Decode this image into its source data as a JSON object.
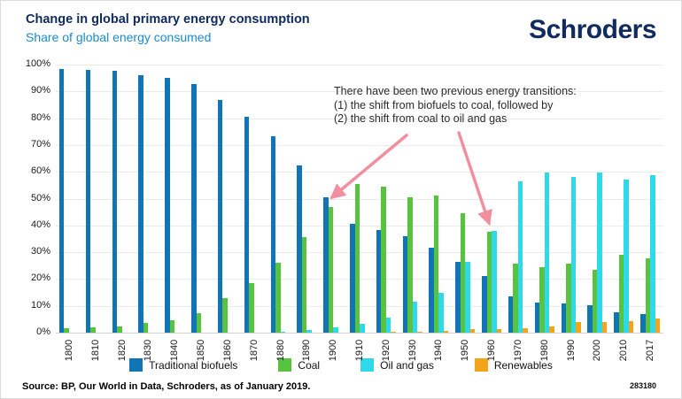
{
  "header": {
    "logo": "Schroders"
  },
  "annotation": {
    "lines": [
      "There have been two previous energy transitions:",
      "(1) the shift from biofuels to coal, followed by",
      "(2) the shift from coal to oil and gas"
    ]
  },
  "chart_data": {
    "type": "bar",
    "title": "Change in global primary energy consumption",
    "subtitle": "Share of global energy consumed",
    "xlabel": "",
    "ylabel": "Share of global energy consumed",
    "ylim": [
      0,
      100
    ],
    "y_ticks": [
      "0%",
      "10%",
      "20%",
      "30%",
      "40%",
      "50%",
      "60%",
      "70%",
      "80%",
      "90%",
      "100%"
    ],
    "grid": true,
    "legend_position": "bottom",
    "categories": [
      "1800",
      "1810",
      "1820",
      "1830",
      "1840",
      "1850",
      "1860",
      "1870",
      "1880",
      "1890",
      "1900",
      "1910",
      "1920",
      "1930",
      "1940",
      "1950",
      "1960",
      "1970",
      "1980",
      "1990",
      "2000",
      "2010",
      "2017"
    ],
    "series": [
      {
        "key": "traditional-biofuels",
        "name": "Traditional biofuels",
        "color": "#1175b5",
        "values": [
          98.3,
          98.0,
          97.6,
          96.1,
          95.1,
          92.6,
          86.8,
          80.6,
          73.2,
          62.4,
          50.4,
          40.6,
          38.3,
          35.9,
          31.7,
          26.4,
          21.2,
          13.7,
          11.3,
          10.8,
          10.3,
          7.5,
          6.8
        ]
      },
      {
        "key": "coal",
        "name": "Coal",
        "color": "#58c33f",
        "values": [
          1.5,
          2.0,
          2.3,
          3.7,
          4.6,
          7.2,
          12.8,
          18.4,
          26.2,
          35.8,
          47.0,
          55.3,
          54.4,
          50.5,
          51.1,
          44.6,
          37.5,
          25.9,
          24.4,
          25.7,
          23.5,
          29.2,
          27.8
        ]
      },
      {
        "key": "oil-and-gas",
        "name": "Oil and gas",
        "color": "#2ed9e9",
        "values": [
          0,
          0,
          0,
          0,
          0,
          0,
          0,
          0,
          0.2,
          1.0,
          2.1,
          3.3,
          5.6,
          11.4,
          15.0,
          26.3,
          38.0,
          56.4,
          59.8,
          58.0,
          59.6,
          57.0,
          58.8
        ]
      },
      {
        "key": "renewables",
        "name": "Renewables",
        "color": "#f2a51a",
        "values": [
          0,
          0,
          0,
          0,
          0,
          0,
          0,
          0,
          0,
          0,
          0,
          0,
          0.3,
          0.5,
          0.8,
          1.2,
          1.4,
          1.6,
          2.3,
          3.9,
          4.1,
          4.4,
          5.3
        ]
      }
    ]
  },
  "colors": {
    "title_navy": "#0f2a5e",
    "subtitle_blue": "#1b8ccc",
    "logo_navy": "#112a60",
    "arrow_pink": "#f18fa0",
    "gridline": "#ebebeb"
  },
  "footer": {
    "source": "Source: BP, Our World in Data, Schroders, as of January 2019.",
    "code": "283180"
  }
}
